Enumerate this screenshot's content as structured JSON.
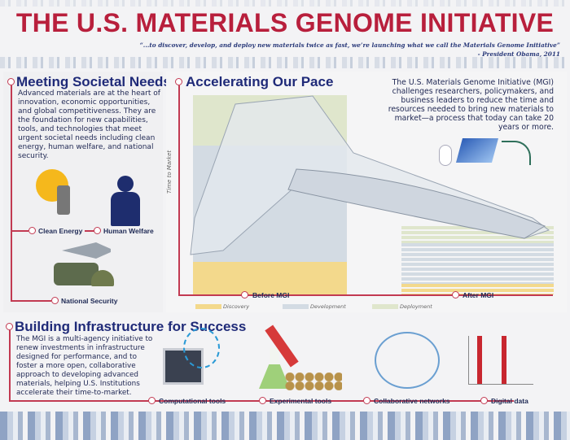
{
  "title": "THE U.S. MATERIALS GENOME INITIATIVE",
  "quote": "“...to discover, develop, and deploy new materials twice as fast, we’re launching what we call the Materials Genome Initiative”",
  "attribution": "- President Obama, 2011",
  "societal": {
    "heading": "Meeting Societal Needs",
    "text": "Advanced materials are at the heart of innovation, economic opportunities, and global competitiveness. They are the foundation for new capabilities, tools, and technologies that meet urgent societal needs including clean energy, human welfare, and national security.",
    "items": [
      "Clean Energy",
      "Human Welfare",
      "National Security"
    ]
  },
  "pace": {
    "heading": "Accelerating Our Pace",
    "text": "The U.S. Materials Genome Initiative (MGI) challenges researchers, policymakers, and business leaders to reduce the time and resources needed to bring new materials to market—a process that today can take 20 years or more.",
    "y_axis": "Time to Market",
    "before": "Before MGI",
    "after": "After MGI",
    "legend": [
      {
        "label": "Discovery",
        "color": "#f3d98c"
      },
      {
        "label": "Development",
        "color": "#d3dbe3"
      },
      {
        "label": "Deployment",
        "color": "#dfe6cc"
      }
    ]
  },
  "infra": {
    "heading": "Building Infrastructure for Success",
    "text": "The MGI is a multi-agency initiative to renew investments in infrastructure designed for performance, and to foster a more open, collaborative approach to developing advanced materials, helping U.S. Institutions accelerate their time-to-market.",
    "items": [
      "Computational tools",
      "Experimental tools",
      "Collaborative networks",
      "Digital data"
    ]
  },
  "colors": {
    "accent": "#b81f3c",
    "heading": "#1f2a78"
  }
}
